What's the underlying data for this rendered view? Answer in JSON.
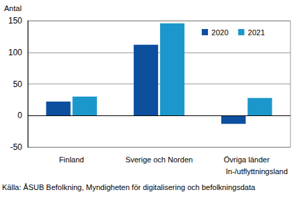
{
  "chart_data": {
    "type": "bar",
    "y_label": "Antal",
    "x_label": "In-/utflyttningsland",
    "source": "Källa: ÅSUB Befolkning, Myndigheten för digitalisering och befolkningsdata",
    "categories": [
      "Finland",
      "Sverige och Norden",
      "Övriga länder"
    ],
    "series": [
      {
        "name": "2020",
        "color": "#0d4f9f",
        "values": [
          22,
          112,
          -13
        ]
      },
      {
        "name": "2021",
        "color": "#1c97cb",
        "values": [
          30,
          146,
          28
        ]
      }
    ],
    "ylim": [
      -50,
      150
    ],
    "yticks": [
      -50,
      0,
      50,
      100,
      150
    ],
    "grid": true,
    "legend": "upper right"
  }
}
